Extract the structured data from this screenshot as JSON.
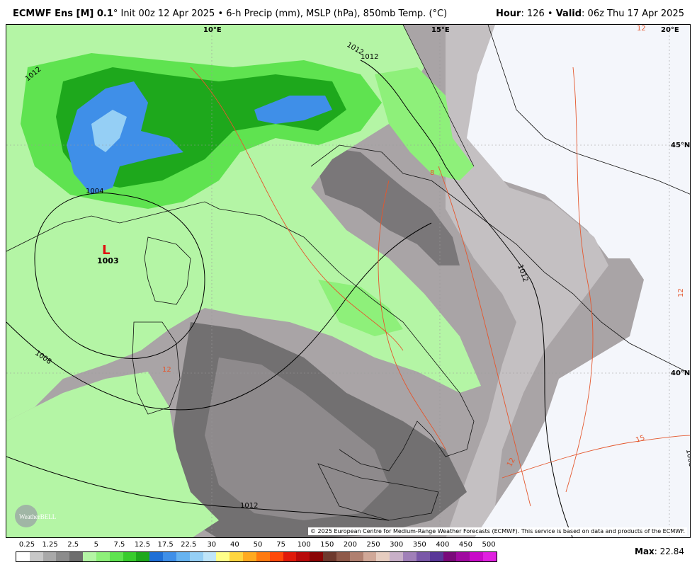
{
  "header": {
    "model": "ECMWF Ens [M] 0.1",
    "degree": "°",
    "init_text": " Init 00z 12 Apr 2025 • 6-h Precip (mm), MSLP (hPa), 850mb Temp. (°C)",
    "hour_label": "Hour",
    "hour_value": ": 126 • ",
    "valid_label": "Valid",
    "valid_value": ": 06z Thu 17 Apr 2025"
  },
  "map": {
    "lon_labels": [
      "10°E",
      "15°E",
      "20°E"
    ],
    "lat_labels": [
      "45°N",
      "40°N"
    ],
    "low_symbol": "L",
    "low_pressure": "1003",
    "isobar_labels": [
      "1012",
      "1012",
      "1012",
      "1004",
      "1008",
      "1012",
      "1012",
      "1008"
    ],
    "temp_labels": [
      "12",
      "8",
      "12",
      "15",
      "12",
      "12"
    ],
    "copyright": "© 2025 European Centre for Medium-Range Weather Forecasts (ECMWF). This service is based on data and products of the ECMWF.",
    "logo_text": "WeatherBELL"
  },
  "legend": {
    "ticks": [
      "0.25",
      "1.25",
      "2.5",
      "5",
      "7.5",
      "12.5",
      "17.5",
      "22.5",
      "30",
      "40",
      "50",
      "75",
      "100",
      "150",
      "200",
      "250",
      "300",
      "350",
      "400",
      "450",
      "500"
    ],
    "colors": [
      "#ffffff",
      "#c8c8c8",
      "#a9a9a9",
      "#8c8c8c",
      "#6e6e6e",
      "#b4f5a5",
      "#8ef07a",
      "#5fe350",
      "#38cc2d",
      "#1ea81c",
      "#1f6fd6",
      "#3f8fe8",
      "#67b3f0",
      "#95cff5",
      "#bfe5f9",
      "#ffff8a",
      "#ffd640",
      "#ffaa20",
      "#ff7a10",
      "#ff4a0a",
      "#e01a0a",
      "#b80a0a",
      "#8a0505",
      "#6e3a2e",
      "#8f5a4a",
      "#b08070",
      "#d0a898",
      "#e6cdc0",
      "#c8b0c8",
      "#a080b8",
      "#7a58a8",
      "#5a3898",
      "#7a0a7a",
      "#a00aa0",
      "#c80ac8",
      "#e020e0"
    ],
    "max_label": "Max",
    "max_value": ": 22.84"
  }
}
